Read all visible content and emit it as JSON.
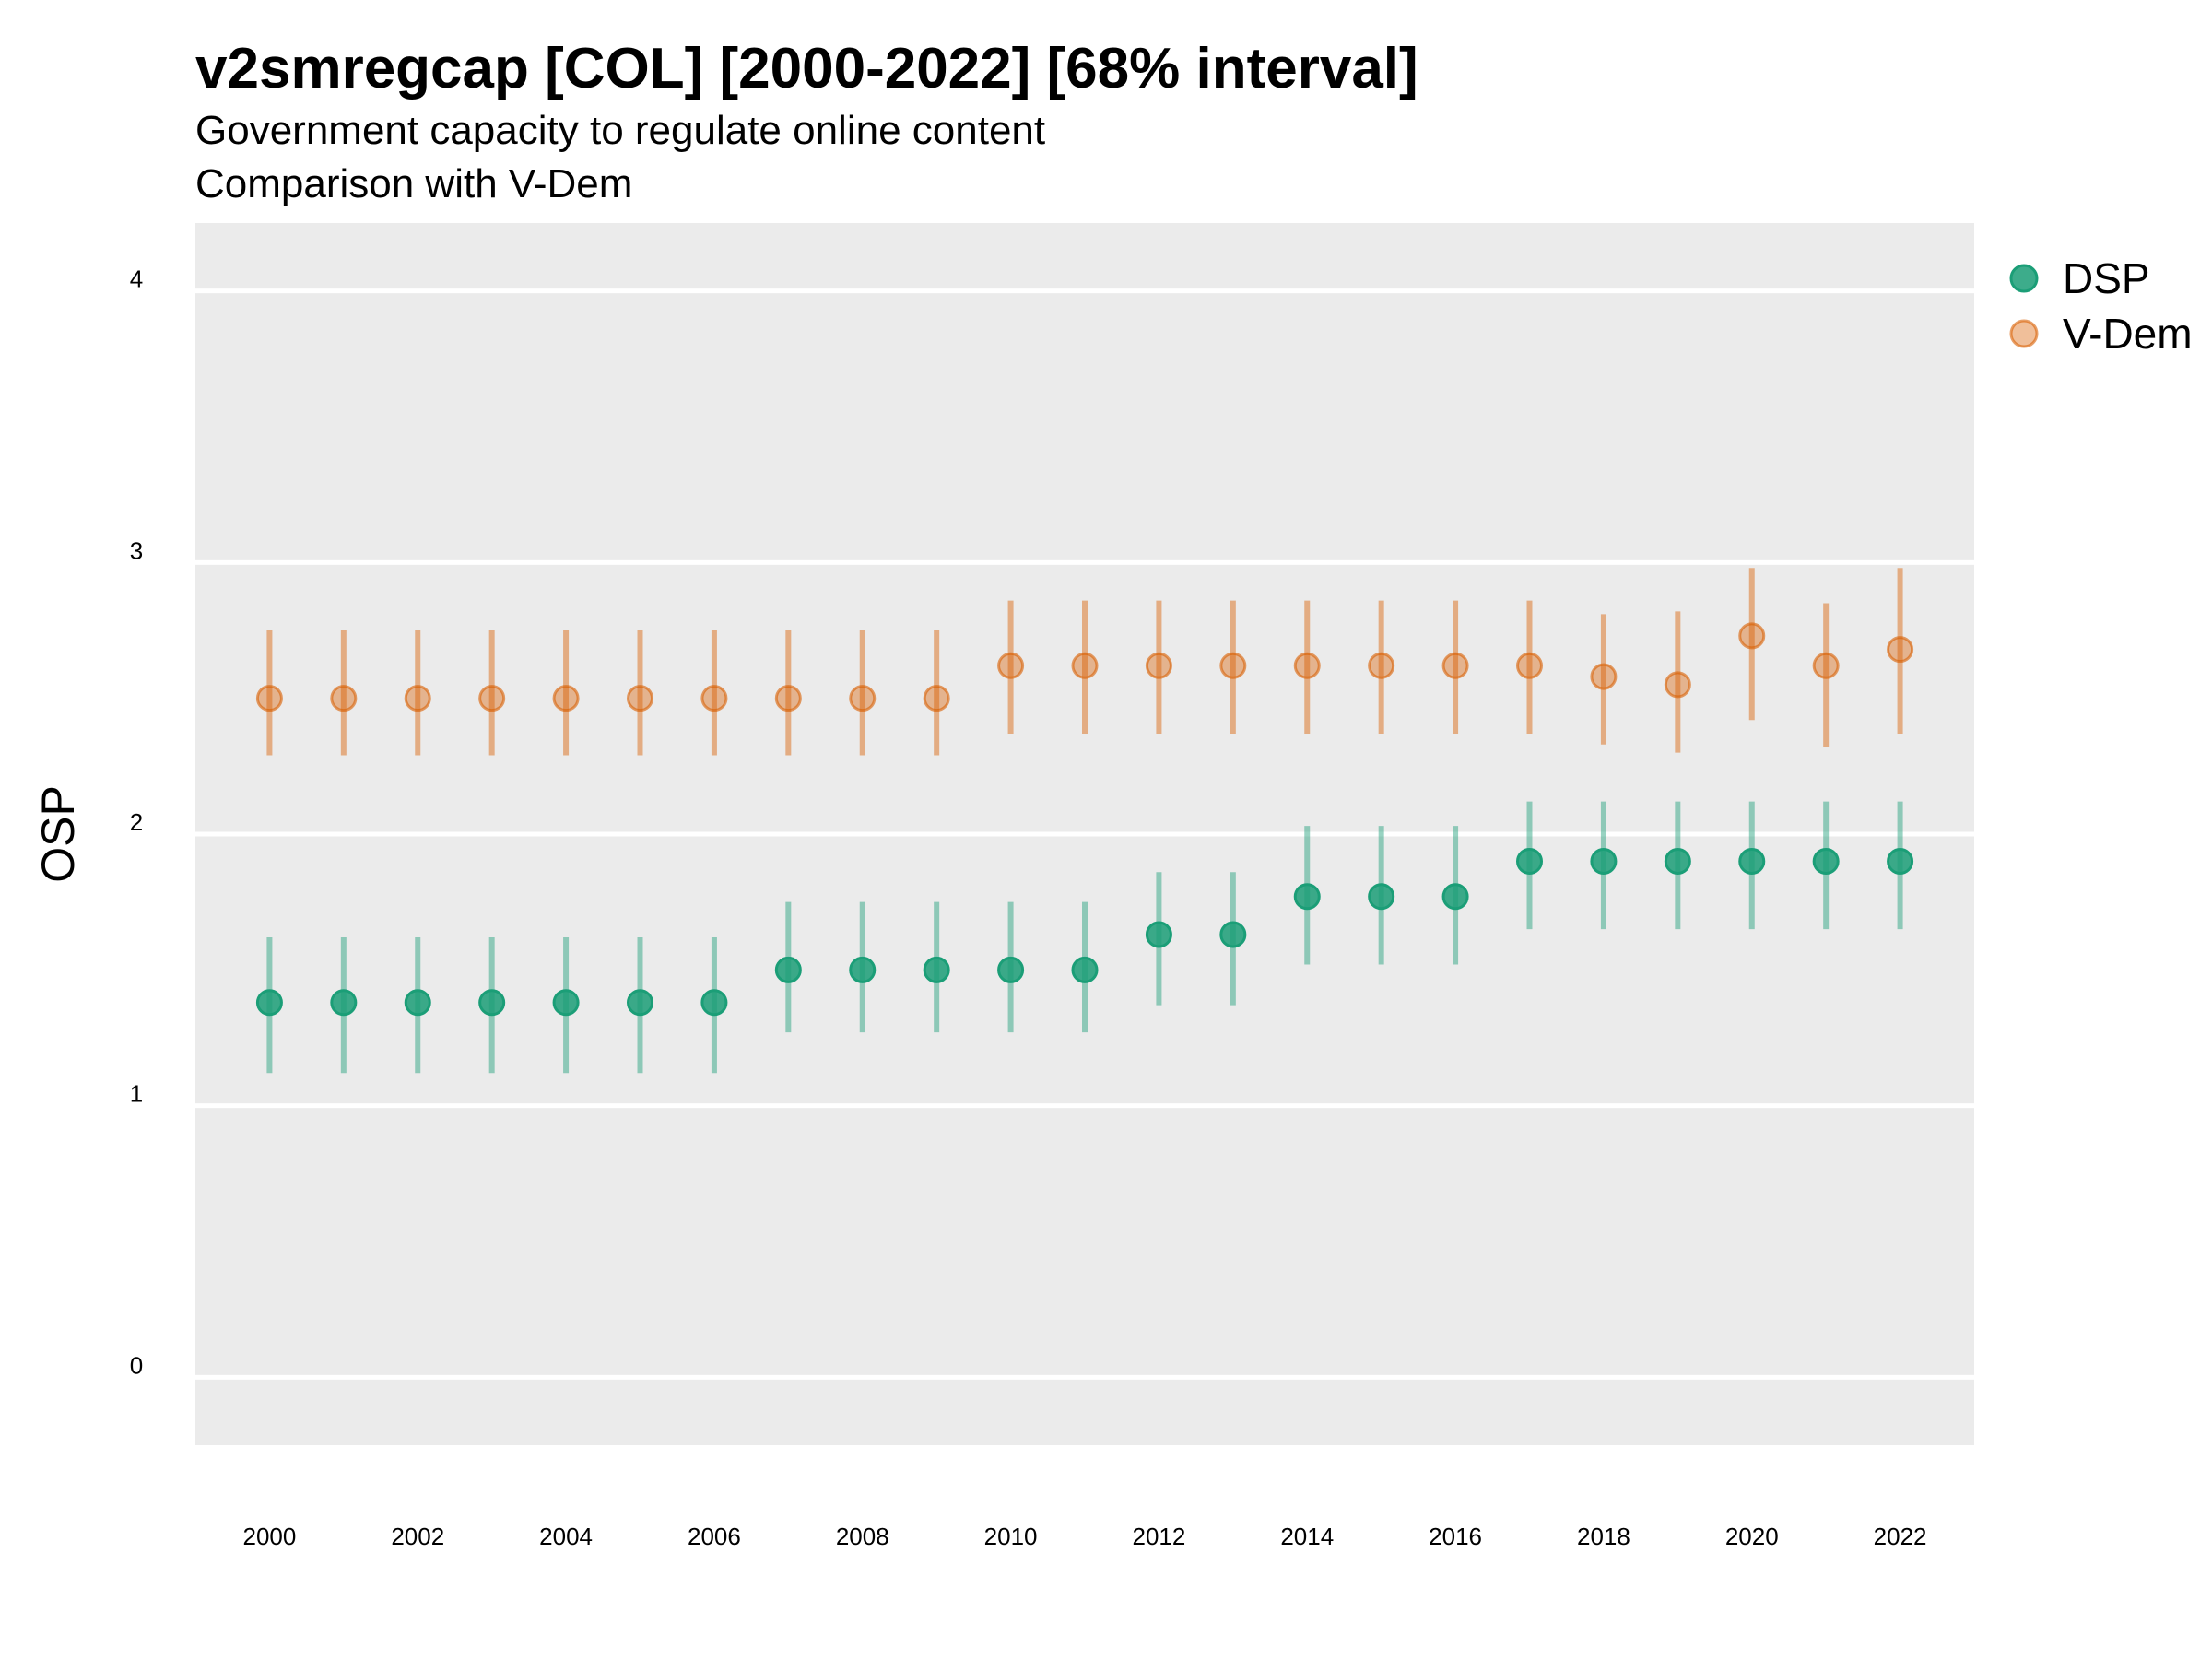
{
  "chart_data": {
    "type": "scatter",
    "title": "v2smregcap [COL] [2000-2022] [68% interval]",
    "subtitle": "Government capacity to regulate online content",
    "subtitle2": "Comparison with V-Dem",
    "xlabel": "",
    "ylabel": "OSP",
    "xlim": [
      1999,
      2023
    ],
    "ylim": [
      -0.25,
      4.25
    ],
    "x_ticks": [
      2000,
      2002,
      2004,
      2006,
      2008,
      2010,
      2012,
      2014,
      2016,
      2018,
      2020,
      2022
    ],
    "y_ticks": [
      0,
      1,
      2,
      3,
      4
    ],
    "grid": true,
    "legend_position": "top-right",
    "x": [
      2000,
      2001,
      2002,
      2003,
      2004,
      2005,
      2006,
      2007,
      2008,
      2009,
      2010,
      2011,
      2012,
      2013,
      2014,
      2015,
      2016,
      2017,
      2018,
      2019,
      2020,
      2021,
      2022
    ],
    "series": [
      {
        "name": "DSP",
        "color": "#1b9e77",
        "values": [
          1.38,
          1.38,
          1.38,
          1.38,
          1.38,
          1.38,
          1.38,
          1.5,
          1.5,
          1.5,
          1.5,
          1.5,
          1.63,
          1.63,
          1.77,
          1.77,
          1.77,
          1.9,
          1.9,
          1.9,
          1.9,
          1.9,
          1.9
        ],
        "lower": [
          1.12,
          1.12,
          1.12,
          1.12,
          1.12,
          1.12,
          1.12,
          1.27,
          1.27,
          1.27,
          1.27,
          1.27,
          1.37,
          1.37,
          1.52,
          1.52,
          1.52,
          1.65,
          1.65,
          1.65,
          1.65,
          1.65,
          1.65
        ],
        "upper": [
          1.62,
          1.62,
          1.62,
          1.62,
          1.62,
          1.62,
          1.62,
          1.75,
          1.75,
          1.75,
          1.75,
          1.75,
          1.86,
          1.86,
          2.03,
          2.03,
          2.03,
          2.12,
          2.12,
          2.12,
          2.12,
          2.12,
          2.12
        ]
      },
      {
        "name": "V-Dem",
        "color": "#d95f02",
        "values": [
          2.5,
          2.5,
          2.5,
          2.5,
          2.5,
          2.5,
          2.5,
          2.5,
          2.5,
          2.5,
          2.62,
          2.62,
          2.62,
          2.62,
          2.62,
          2.62,
          2.62,
          2.62,
          2.58,
          2.55,
          2.73,
          2.62,
          2.68
        ],
        "lower": [
          2.29,
          2.29,
          2.29,
          2.29,
          2.29,
          2.29,
          2.29,
          2.29,
          2.29,
          2.29,
          2.37,
          2.37,
          2.37,
          2.37,
          2.37,
          2.37,
          2.37,
          2.37,
          2.33,
          2.3,
          2.42,
          2.32,
          2.37
        ],
        "upper": [
          2.75,
          2.75,
          2.75,
          2.75,
          2.75,
          2.75,
          2.75,
          2.75,
          2.75,
          2.75,
          2.86,
          2.86,
          2.86,
          2.86,
          2.86,
          2.86,
          2.86,
          2.86,
          2.81,
          2.82,
          2.98,
          2.85,
          2.98
        ]
      }
    ]
  }
}
